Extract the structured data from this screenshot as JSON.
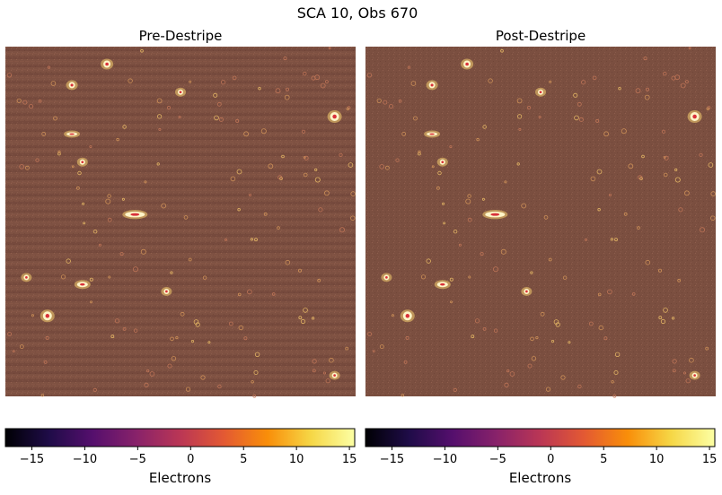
{
  "figure": {
    "title": "SCA 10, Obs 670"
  },
  "chart_data": [
    {
      "type": "heatmap",
      "title": "Pre-Destripe",
      "colormap": "inferno",
      "axes_visible": false,
      "colorbar": {
        "orientation": "horizontal",
        "label": "Electrons",
        "range": [
          -17.5,
          15.5
        ],
        "ticks": [
          -15,
          -10,
          -5,
          0,
          5,
          10,
          15
        ],
        "tick_labels": [
          "−15",
          "−10",
          "−5",
          "0",
          "5",
          "10",
          "15"
        ]
      },
      "appearance": {
        "background_mean": 0.5,
        "horizontal_striping": true,
        "base_color": "#7e5142"
      }
    },
    {
      "type": "heatmap",
      "title": "Post-Destripe",
      "colormap": "inferno",
      "axes_visible": false,
      "colorbar": {
        "orientation": "horizontal",
        "label": "Electrons",
        "range": [
          -17.5,
          15.5
        ],
        "ticks": [
          -15,
          -10,
          -5,
          0,
          5,
          10,
          15
        ],
        "tick_labels": [
          "−15",
          "−10",
          "−5",
          "0",
          "5",
          "10",
          "15"
        ]
      },
      "appearance": {
        "background_mean": 0.5,
        "horizontal_striping": false,
        "base_color": "#7b4f40"
      }
    }
  ]
}
